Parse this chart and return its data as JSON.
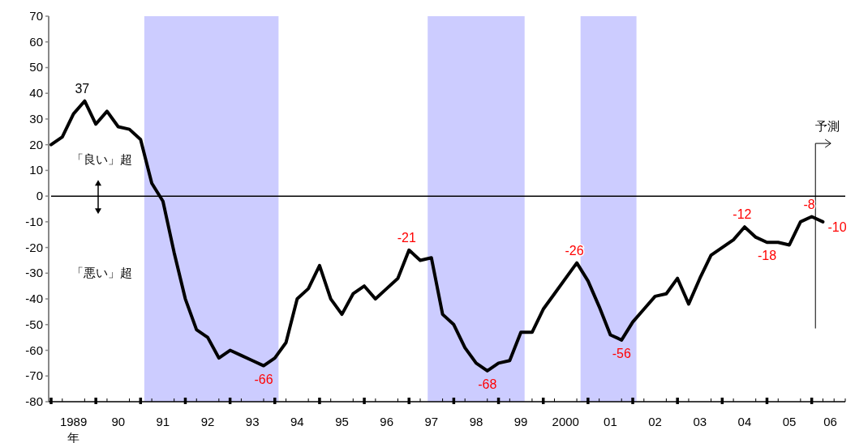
{
  "chart_data": {
    "type": "line",
    "xlabel": "年",
    "x": [
      "1989-01",
      "1989-04",
      "1989-07",
      "1989-10",
      "1990-01",
      "1990-04",
      "1990-07",
      "1990-10",
      "1991-01",
      "1991-04",
      "1991-07",
      "1991-10",
      "1992-01",
      "1992-04",
      "1992-07",
      "1992-10",
      "1993-01",
      "1993-04",
      "1993-07",
      "1993-10",
      "1994-01",
      "1994-04",
      "1994-07",
      "1994-10",
      "1995-01",
      "1995-04",
      "1995-07",
      "1995-10",
      "1996-01",
      "1996-04",
      "1996-07",
      "1996-10",
      "1997-01",
      "1997-04",
      "1997-07",
      "1997-10",
      "1998-01",
      "1998-04",
      "1998-07",
      "1998-10",
      "1999-01",
      "1999-04",
      "1999-07",
      "1999-10",
      "2000-01",
      "2000-04",
      "2000-07",
      "2000-10",
      "2001-01",
      "2001-04",
      "2001-07",
      "2001-10",
      "2002-01",
      "2002-04",
      "2002-07",
      "2002-10",
      "2003-01",
      "2003-04",
      "2003-07",
      "2003-10",
      "2004-01",
      "2004-04",
      "2004-07",
      "2004-10",
      "2005-01",
      "2005-04",
      "2005-07",
      "2005-10",
      "2006-01",
      "2006-04"
    ],
    "series": [
      {
        "color": "#000000",
        "values": [
          20,
          23,
          32,
          37,
          28,
          33,
          27,
          26,
          22,
          5,
          -2,
          -22,
          -40,
          -52,
          -55,
          -63,
          -60,
          -62,
          -64,
          -66,
          -63,
          -57,
          -40,
          -36,
          -27,
          -40,
          -46,
          -38,
          -35,
          -40,
          -36,
          -32,
          -21,
          -25,
          -24,
          -46,
          -50,
          -59,
          -65,
          -68,
          -65,
          -64,
          -53,
          -53,
          -44,
          -38,
          -32,
          -26,
          -33,
          -43,
          -54,
          -56,
          -49,
          -44,
          -39,
          -38,
          -32,
          -42,
          -32,
          -23,
          -20,
          -17,
          -12,
          -16,
          -18,
          -18,
          -19,
          -10,
          -8,
          -10
        ],
        "value_labels": [
          null,
          null,
          null,
          "37",
          null,
          null,
          null,
          null,
          null,
          null,
          null,
          null,
          null,
          null,
          null,
          null,
          null,
          null,
          null,
          "-66",
          null,
          null,
          null,
          null,
          null,
          null,
          null,
          null,
          null,
          null,
          null,
          null,
          "-21",
          null,
          null,
          null,
          null,
          null,
          null,
          "-68",
          null,
          null,
          null,
          null,
          null,
          null,
          null,
          "-26",
          null,
          null,
          null,
          "-56",
          null,
          null,
          null,
          null,
          null,
          null,
          null,
          null,
          null,
          null,
          "-12",
          null,
          "-18",
          null,
          null,
          null,
          "-8",
          "-10"
        ]
      }
    ],
    "xlim": [
      "1989-01",
      "2006-10"
    ],
    "xticks": [
      {
        "value": "1989-07",
        "label": "1989"
      },
      {
        "value": "1990-07",
        "label": "90"
      },
      {
        "value": "1991-07",
        "label": "91"
      },
      {
        "value": "1992-07",
        "label": "92"
      },
      {
        "value": "1993-07",
        "label": "93"
      },
      {
        "value": "1994-07",
        "label": "94"
      },
      {
        "value": "1995-07",
        "label": "95"
      },
      {
        "value": "1996-07",
        "label": "96"
      },
      {
        "value": "1997-07",
        "label": "97"
      },
      {
        "value": "1998-07",
        "label": "98"
      },
      {
        "value": "1999-07",
        "label": "99"
      },
      {
        "value": "2000-07",
        "label": "2000"
      },
      {
        "value": "2001-07",
        "label": "01"
      },
      {
        "value": "2002-07",
        "label": "02"
      },
      {
        "value": "2003-07",
        "label": "03"
      },
      {
        "value": "2004-07",
        "label": "04"
      },
      {
        "value": "2005-07",
        "label": "05"
      },
      {
        "value": "2006-06",
        "label": "06"
      },
      {
        "value": "1989-01",
        "label": null
      },
      {
        "value": "1989-04",
        "label": null
      },
      {
        "value": "1989-10",
        "label": null
      },
      {
        "value": "1990-01",
        "label": null
      },
      {
        "value": "1990-04",
        "label": null
      },
      {
        "value": "1990-10",
        "label": null
      },
      {
        "value": "1991-01",
        "label": null
      },
      {
        "value": "1991-04",
        "label": null
      },
      {
        "value": "1991-10",
        "label": null
      },
      {
        "value": "1992-01",
        "label": null
      },
      {
        "value": "1992-04",
        "label": null
      },
      {
        "value": "1992-10",
        "label": null
      },
      {
        "value": "1993-01",
        "label": null
      },
      {
        "value": "1993-04",
        "label": null
      },
      {
        "value": "1993-10",
        "label": null
      },
      {
        "value": "1994-01",
        "label": null
      },
      {
        "value": "1994-04",
        "label": null
      },
      {
        "value": "1994-10",
        "label": null
      },
      {
        "value": "1995-01",
        "label": null
      },
      {
        "value": "1995-04",
        "label": null
      },
      {
        "value": "1995-10",
        "label": null
      },
      {
        "value": "1996-01",
        "label": null
      },
      {
        "value": "1996-04",
        "label": null
      },
      {
        "value": "1996-10",
        "label": null
      },
      {
        "value": "1997-01",
        "label": null
      },
      {
        "value": "1997-04",
        "label": null
      },
      {
        "value": "1997-10",
        "label": null
      },
      {
        "value": "1998-01",
        "label": null
      },
      {
        "value": "1998-04",
        "label": null
      },
      {
        "value": "1998-10",
        "label": null
      },
      {
        "value": "1999-01",
        "label": null
      },
      {
        "value": "1999-04",
        "label": null
      },
      {
        "value": "1999-10",
        "label": null
      },
      {
        "value": "2000-01",
        "label": null
      },
      {
        "value": "2000-04",
        "label": null
      },
      {
        "value": "2000-10",
        "label": null
      },
      {
        "value": "2001-01",
        "label": null
      },
      {
        "value": "2001-04",
        "label": null
      },
      {
        "value": "2001-10",
        "label": null
      },
      {
        "value": "2002-01",
        "label": null
      },
      {
        "value": "2002-04",
        "label": null
      },
      {
        "value": "2002-10",
        "label": null
      },
      {
        "value": "2003-01",
        "label": null
      },
      {
        "value": "2003-04",
        "label": null
      },
      {
        "value": "2003-10",
        "label": null
      },
      {
        "value": "2004-01",
        "label": null
      },
      {
        "value": "2004-04",
        "label": null
      },
      {
        "value": "2004-10",
        "label": null
      },
      {
        "value": "2005-01",
        "label": null
      },
      {
        "value": "2005-04",
        "label": null
      },
      {
        "value": "2005-10",
        "label": null
      },
      {
        "value": "2006-01",
        "label": null
      },
      {
        "value": "2006-04",
        "label": null
      },
      {
        "value": "2006-07",
        "label": null
      },
      {
        "value": "2006-10",
        "label": null
      }
    ],
    "ylim": [
      -80,
      70
    ],
    "yticks": [
      -80,
      -70,
      -60,
      -50,
      -40,
      -30,
      -20,
      -10,
      0,
      10,
      20,
      30,
      40,
      50,
      60,
      70
    ],
    "bands": [
      {
        "axis": "x",
        "from": "1991-02",
        "to": "1994-02",
        "color": "#ccccff"
      },
      {
        "axis": "x",
        "from": "1997-06",
        "to": "1999-08",
        "color": "#ccccff"
      },
      {
        "axis": "x",
        "from": "2000-11",
        "to": "2002-02",
        "color": "#ccccff"
      }
    ],
    "ref_lines": [
      {
        "axis": "y",
        "value": 0
      },
      {
        "axis": "x",
        "value": "2006-02",
        "label": "予測"
      }
    ],
    "annotations": [
      "「良い」超",
      "「悪い」超"
    ]
  }
}
